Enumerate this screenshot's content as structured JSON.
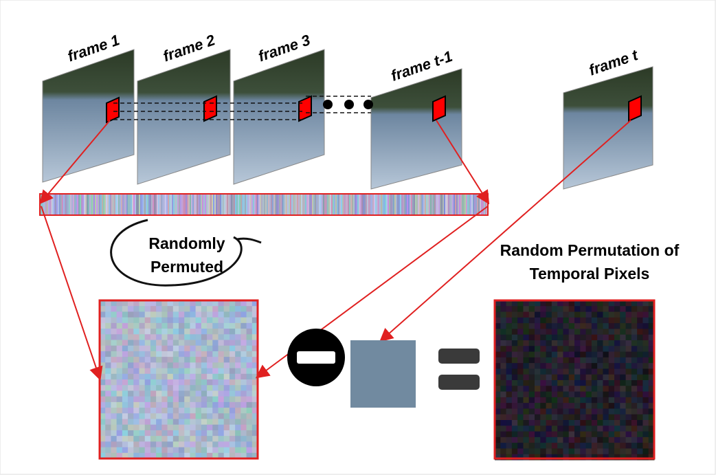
{
  "frames": [
    {
      "label": "frame 1"
    },
    {
      "label": "frame 2"
    },
    {
      "label": "frame 3"
    },
    {
      "label": "frame t-1"
    },
    {
      "label": "frame t"
    }
  ],
  "permute_label": {
    "lines": [
      "Randomly",
      "Permuted"
    ]
  },
  "result_label": {
    "lines": [
      "Random Permutation of",
      "Temporal Pixels"
    ]
  }
}
